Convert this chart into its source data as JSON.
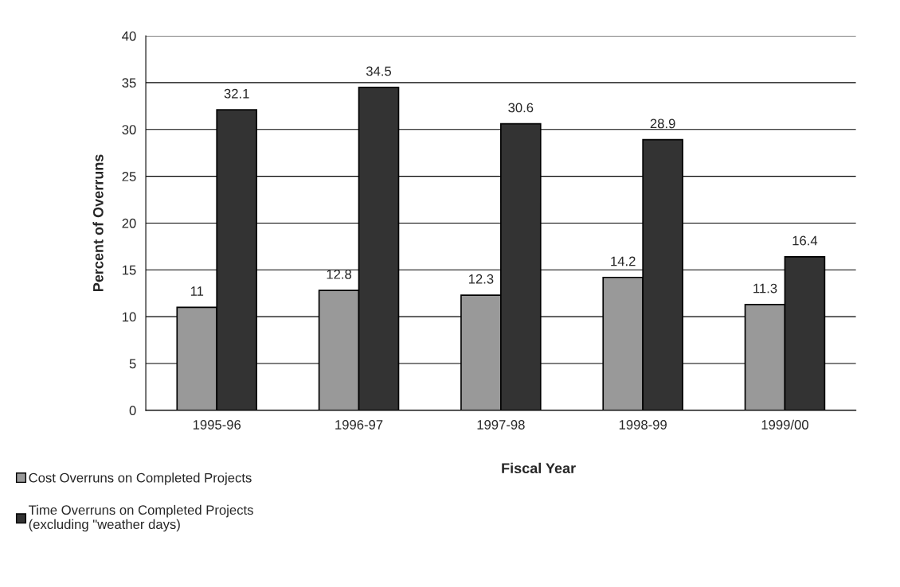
{
  "chart_data": {
    "type": "bar",
    "xlabel": "Fiscal Year",
    "ylabel": "Percent of Overruns",
    "categories": [
      "1995-96",
      "1996-97",
      "1997-98",
      "1998-99",
      "1999/00"
    ],
    "series": [
      {
        "name": "Cost Overruns on Completed Projects",
        "color": "#999999",
        "values": [
          11,
          12.8,
          12.3,
          14.2,
          11.3
        ]
      },
      {
        "name": "Time Overruns on Completed Projects\n(excluding \"weather days)",
        "color": "#333333",
        "values": [
          32.1,
          34.5,
          30.6,
          28.9,
          16.4
        ]
      }
    ],
    "ylim": [
      0,
      40
    ],
    "yticks": [
      0,
      5,
      10,
      15,
      20,
      25,
      30,
      35,
      40
    ],
    "grid": "y",
    "legend": "bottom left",
    "data_labels": true
  }
}
